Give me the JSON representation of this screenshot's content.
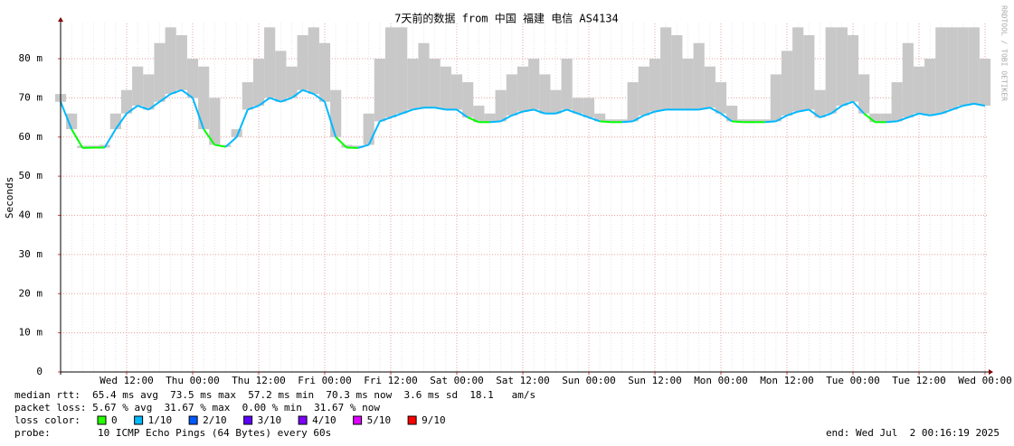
{
  "chart_data": {
    "type": "line",
    "title": "7天前的数据 from 中国 福建 电信 AS4134",
    "y_label": "Seconds",
    "watermark": "RRDTOOL / TOBI OETIKER",
    "categories": [
      null,
      null,
      null,
      null,
      null,
      null,
      "Wed 12:00",
      null,
      null,
      null,
      null,
      null,
      "Thu 00:00",
      null,
      null,
      null,
      null,
      null,
      "Thu 12:00",
      null,
      null,
      null,
      null,
      null,
      "Fri 00:00",
      null,
      null,
      null,
      null,
      null,
      "Fri 12:00",
      null,
      null,
      null,
      null,
      null,
      "Sat 00:00",
      null,
      null,
      null,
      null,
      null,
      "Sat 12:00",
      null,
      null,
      null,
      null,
      null,
      "Sun 00:00",
      null,
      null,
      null,
      null,
      null,
      "Sun 12:00",
      null,
      null,
      null,
      null,
      null,
      "Mon 00:00",
      null,
      null,
      null,
      null,
      null,
      "Mon 12:00",
      null,
      null,
      null,
      null,
      null,
      "Tue 00:00",
      null,
      null,
      null,
      null,
      null,
      "Tue 12:00",
      null,
      null,
      null,
      null,
      null,
      "Wed 00:00"
    ],
    "values": [
      0.069,
      0.062,
      0.0572,
      0.0573,
      0.0573,
      0.062,
      0.066,
      0.068,
      0.067,
      0.069,
      0.071,
      0.072,
      0.07,
      0.062,
      0.058,
      0.0575,
      0.06,
      0.067,
      0.068,
      0.07,
      0.069,
      0.07,
      0.072,
      0.071,
      0.069,
      0.06,
      0.0573,
      0.0572,
      0.058,
      0.064,
      0.065,
      0.066,
      0.067,
      0.0675,
      0.0675,
      0.067,
      0.067,
      0.065,
      0.0638,
      0.0638,
      0.064,
      0.0655,
      0.0665,
      0.067,
      0.066,
      0.066,
      0.067,
      0.066,
      0.065,
      0.064,
      0.0638,
      0.0638,
      0.064,
      0.0655,
      0.0665,
      0.067,
      0.067,
      0.067,
      0.067,
      0.0675,
      0.066,
      0.064,
      0.0638,
      0.0638,
      0.0638,
      0.064,
      0.0655,
      0.0665,
      0.067,
      0.065,
      0.066,
      0.068,
      0.069,
      0.066,
      0.0638,
      0.0638,
      0.064,
      0.065,
      0.066,
      0.0655,
      0.066,
      0.067,
      0.068,
      0.0685,
      0.068
    ],
    "smoke_max": [
      0.071,
      0.066,
      0.0578,
      0.0578,
      0.058,
      0.066,
      0.072,
      0.078,
      0.076,
      0.084,
      0.088,
      0.086,
      0.08,
      0.078,
      0.07,
      0.058,
      0.062,
      0.074,
      0.08,
      0.088,
      0.082,
      0.078,
      0.086,
      0.088,
      0.084,
      0.072,
      0.058,
      0.0578,
      0.066,
      0.08,
      0.088,
      0.088,
      0.08,
      0.084,
      0.08,
      0.078,
      0.076,
      0.074,
      0.068,
      0.066,
      0.072,
      0.076,
      0.078,
      0.08,
      0.076,
      0.072,
      0.08,
      0.07,
      0.07,
      0.066,
      0.0645,
      0.0645,
      0.074,
      0.078,
      0.08,
      0.088,
      0.086,
      0.08,
      0.084,
      0.078,
      0.074,
      0.068,
      0.0645,
      0.0645,
      0.0645,
      0.076,
      0.082,
      0.088,
      0.086,
      0.072,
      0.088,
      0.088,
      0.086,
      0.076,
      0.066,
      0.066,
      0.074,
      0.084,
      0.078,
      0.08,
      0.088,
      0.088,
      0.088,
      0.088,
      0.08
    ],
    "colors": [
      "#00b8ff",
      "#00b8ff",
      "#00ff00",
      "#00ff00",
      "#00ff00",
      "#00b8ff",
      "#00b8ff",
      "#00b8ff",
      "#00b8ff",
      "#00b8ff",
      "#00b8ff",
      "#00b8ff",
      "#00b8ff",
      "#00b8ff",
      "#00ff00",
      "#00ff00",
      "#00b8ff",
      "#00b8ff",
      "#00b8ff",
      "#00b8ff",
      "#00b8ff",
      "#00b8ff",
      "#00b8ff",
      "#00b8ff",
      "#00b8ff",
      "#00b8ff",
      "#00ff00",
      "#00ff00",
      "#00b8ff",
      "#00b8ff",
      "#00b8ff",
      "#00b8ff",
      "#00b8ff",
      "#00b8ff",
      "#00b8ff",
      "#00b8ff",
      "#00b8ff",
      "#00b8ff",
      "#00ff00",
      "#00ff00",
      "#00b8ff",
      "#00b8ff",
      "#00b8ff",
      "#00b8ff",
      "#00b8ff",
      "#00b8ff",
      "#00b8ff",
      "#00b8ff",
      "#00b8ff",
      "#00b8ff",
      "#00ff00",
      "#00ff00",
      "#00b8ff",
      "#00b8ff",
      "#00b8ff",
      "#00b8ff",
      "#00b8ff",
      "#00b8ff",
      "#00b8ff",
      "#00b8ff",
      "#00b8ff",
      "#00b8ff",
      "#00ff00",
      "#00ff00",
      "#00ff00",
      "#00b8ff",
      "#00b8ff",
      "#00b8ff",
      "#00b8ff",
      "#00b8ff",
      "#00b8ff",
      "#00b8ff",
      "#00b8ff",
      "#00b8ff",
      "#00ff00",
      "#00ff00",
      "#00b8ff",
      "#00b8ff",
      "#00b8ff",
      "#00b8ff",
      "#00b8ff",
      "#00b8ff",
      "#00b8ff",
      "#00b8ff",
      "#00b8ff"
    ],
    "smoke_color": "#c8c8c8",
    "ylim": [
      0,
      0.089
    ],
    "yticks": [
      0,
      {
        "value": 0.01,
        "label": "10 m"
      },
      {
        "value": 0.02,
        "label": "20 m"
      },
      {
        "value": 0.03,
        "label": "30 m"
      },
      {
        "value": 0.04,
        "label": "40 m"
      },
      {
        "value": 0.05,
        "label": "50 m"
      },
      {
        "value": 0.06,
        "label": "60 m"
      },
      {
        "value": 0.07,
        "label": "70 m"
      },
      {
        "value": 0.08,
        "label": "80 m"
      }
    ],
    "grid": true,
    "stats": [
      "median rtt:  65.4 ms avg  73.5 ms max  57.2 ms min  70.3 ms now  3.6 ms sd  18.1   am/s",
      "packet loss: 5.67 % avg  31.67 % max  0.00 % min  31.67 % now"
    ],
    "loss_title": "loss color:",
    "loss_colors": [
      {
        "label": "0",
        "color": "#26ff00"
      },
      {
        "label": "1/10",
        "color": "#00b8ff"
      },
      {
        "label": "2/10",
        "color": "#0059ff"
      },
      {
        "label": "3/10",
        "color": "#5e00ff"
      },
      {
        "label": "4/10",
        "color": "#7e00ff"
      },
      {
        "label": "5/10",
        "color": "#dd00ff"
      },
      {
        "label": "9/10",
        "color": "#ff0000"
      }
    ],
    "probe_title": "probe:",
    "probe": "10 ICMP Echo Pings (64 Bytes) every 60s",
    "end": "end: Wed Jul  2 00:16:19 2025"
  }
}
